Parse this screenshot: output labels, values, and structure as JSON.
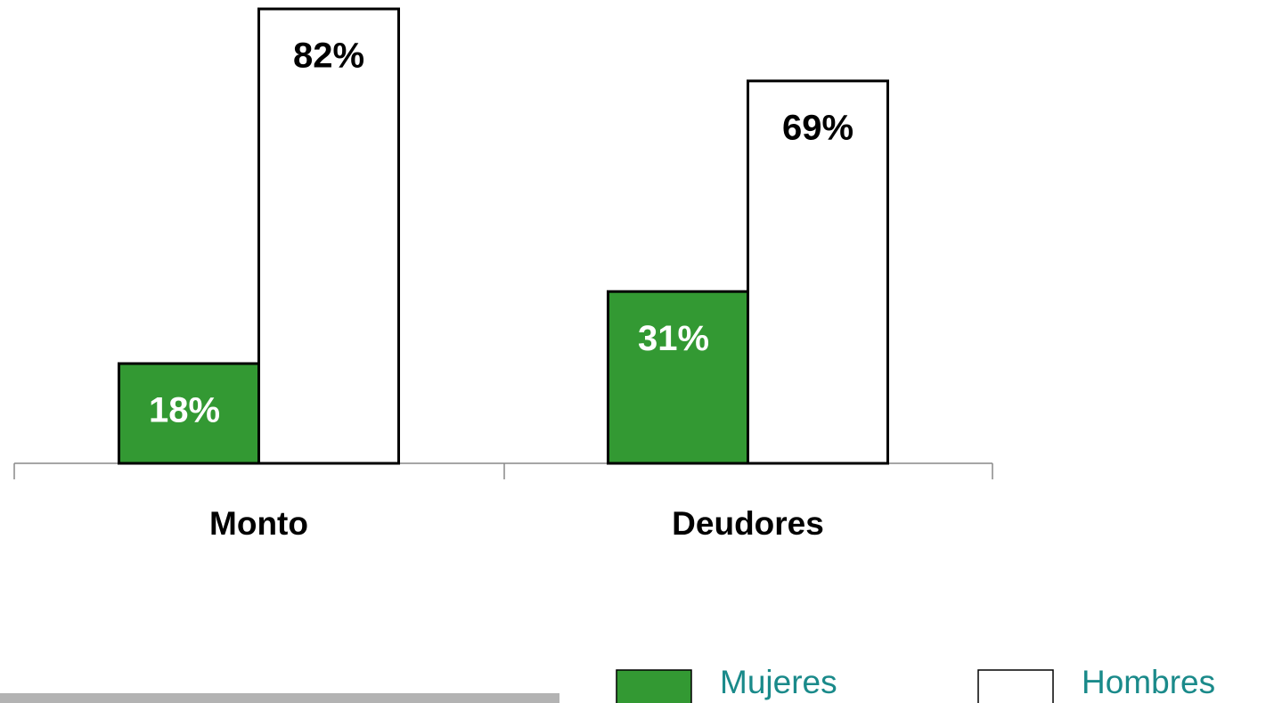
{
  "chart_data": {
    "type": "bar",
    "categories": [
      "Monto",
      "Deudores"
    ],
    "series": [
      {
        "name": "Mujeres",
        "color": "#339933",
        "values": [
          18,
          31
        ],
        "value_labels": [
          "18%",
          "31%"
        ]
      },
      {
        "name": "Hombres",
        "color": "#ffffff",
        "values": [
          82,
          69
        ],
        "value_labels": [
          "82%",
          "69%"
        ]
      }
    ],
    "ylim": [
      0,
      82
    ]
  }
}
